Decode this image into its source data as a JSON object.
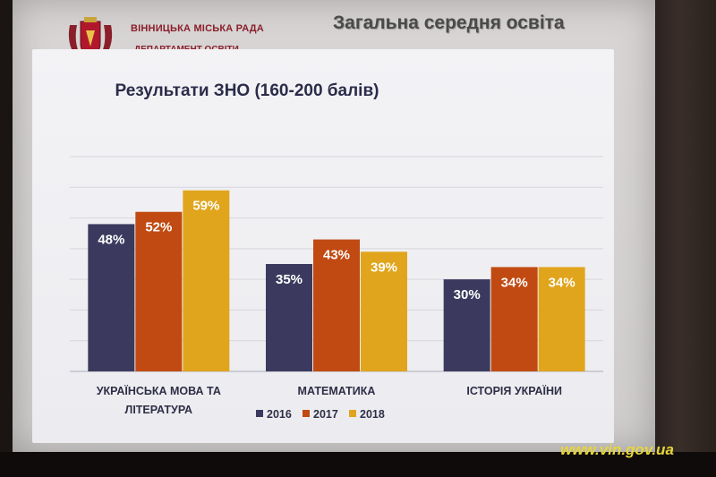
{
  "header": {
    "org_name": "ВІННИЦЬКА МІСЬКА РАДА",
    "department": "ДЕПАРТАМЕНТ ОСВІТИ",
    "slide_title": "Загальна середня освіта"
  },
  "watermark": "www.vin.gov.ua",
  "colors": {
    "2016": "#3b3a5e",
    "2017": "#c04a12",
    "2018": "#e0a51c",
    "title": "#8a1f2b"
  },
  "chart_data": {
    "type": "bar",
    "title": "Результати ЗНО (160-200 балів)",
    "categories": [
      [
        "УКРАЇНСЬКА МОВА ТА",
        "ЛІТЕРАТУРА"
      ],
      [
        "МАТЕМАТИКА"
      ],
      [
        "ІСТОРІЯ УКРАЇНИ"
      ]
    ],
    "series": [
      {
        "name": "2016",
        "values": [
          48,
          35,
          30
        ],
        "labels": [
          "48%",
          "35%",
          "30%"
        ]
      },
      {
        "name": "2017",
        "values": [
          52,
          43,
          34
        ],
        "labels": [
          "52%",
          "43%",
          "34%"
        ]
      },
      {
        "name": "2018",
        "values": [
          59,
          39,
          34
        ],
        "labels": [
          "59%",
          "39%",
          "34%"
        ]
      }
    ],
    "ylim": [
      0,
      70
    ],
    "grid": true,
    "legend_position": "bottom"
  }
}
